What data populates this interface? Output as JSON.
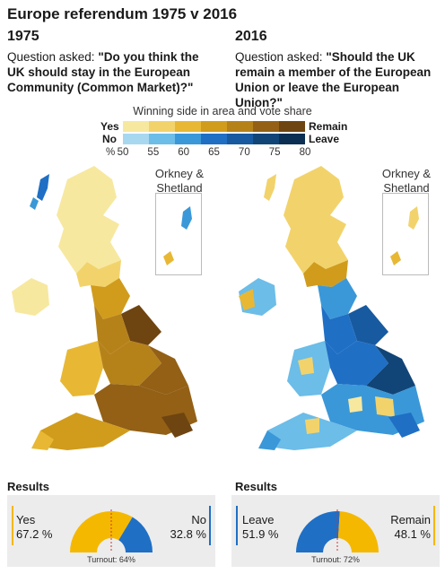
{
  "title": "Europe referendum 1975 v 2016",
  "left": {
    "year": "1975",
    "question_prefix": "Question asked: ",
    "question": "\"Do you think the UK should stay in the European Community (Common Market)?\"",
    "results_title": "Results",
    "option_a": "Yes",
    "value_a": "67.2 %",
    "option_b": "No",
    "value_b": "32.8 %",
    "share_a": 0.672,
    "turnout": "Turnout: 64%",
    "color_a": "#f5b800",
    "color_b": "#1f6fc5"
  },
  "right": {
    "year": "2016",
    "question_prefix": "Question asked: ",
    "question": "\"Should the UK remain a member of the European Union or leave the European Union?\"",
    "results_title": "Results",
    "option_a": "Leave",
    "value_a": "51.9 %",
    "option_b": "Remain",
    "value_b": "48.1 %",
    "share_a": 0.519,
    "turnout": "Turnout: 72%",
    "color_a": "#1f6fc5",
    "color_b": "#f5b800"
  },
  "legend": {
    "caption": "Winning side in area and vote share",
    "yes_label": "Yes",
    "no_label": "No",
    "remain_label": "Remain",
    "leave_label": "Leave",
    "pct_label": "%",
    "ticks": [
      "50",
      "55",
      "60",
      "65",
      "70",
      "75",
      "80"
    ],
    "yes_colors": [
      "#f7e8a0",
      "#f2d36b",
      "#e8b835",
      "#d19c1c",
      "#b5821a",
      "#936016",
      "#6e4410"
    ],
    "no_colors": [
      "#a8d8f0",
      "#6cbde8",
      "#3a98d8",
      "#1f6fc5",
      "#175aa0",
      "#124577",
      "#0b2f52"
    ]
  },
  "maps": {
    "inset_label": "Orkney & Shetland"
  }
}
